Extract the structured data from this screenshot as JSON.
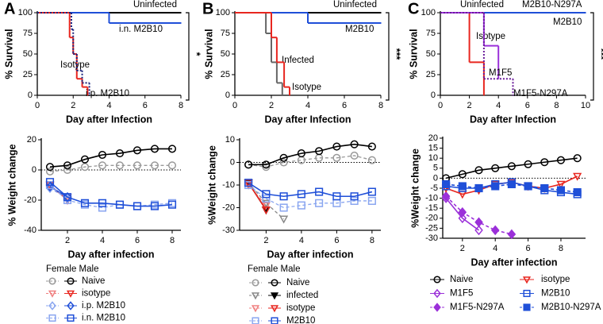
{
  "chart_data": [
    {
      "type": "survival",
      "panel": "A",
      "ylabel": "% Survival",
      "xlabel": "Day after Infection",
      "significance": "*",
      "xlim": [
        0,
        8
      ],
      "xticks": [
        0,
        2,
        4,
        6,
        8
      ],
      "ylim": [
        0,
        100
      ],
      "yticks": [
        0,
        25,
        50,
        75,
        100
      ],
      "series": [
        {
          "name": "Uninfected",
          "color": "#000000",
          "x": [
            0,
            8
          ],
          "values": [
            100,
            100
          ]
        },
        {
          "name": "i.n. M2B10",
          "color": "#1f4fd8",
          "x": [
            0,
            4,
            8
          ],
          "values": [
            100,
            87.5,
            87.5
          ]
        },
        {
          "name": "Isotype",
          "color": "#e8261f",
          "x": [
            0,
            1.8,
            2,
            2.2,
            2.5,
            2.8
          ],
          "values": [
            100,
            70,
            50,
            20,
            10,
            0
          ]
        },
        {
          "name": "i.p. M2B10",
          "color": "#1a237e",
          "dash": "dotted",
          "x": [
            0,
            1.9,
            2,
            2.2,
            2.5,
            2.9
          ],
          "values": [
            100,
            80,
            50,
            30,
            15,
            0
          ]
        }
      ]
    },
    {
      "type": "survival",
      "panel": "B",
      "ylabel": "% Survival",
      "xlabel": "Day after Infection",
      "significance": "***",
      "xlim": [
        0,
        8
      ],
      "xticks": [
        0,
        2,
        4,
        6,
        8
      ],
      "ylim": [
        0,
        100
      ],
      "yticks": [
        0,
        25,
        50,
        75,
        100
      ],
      "series": [
        {
          "name": "Uninfected",
          "color": "#000000",
          "x": [
            0,
            8
          ],
          "values": [
            100,
            100
          ]
        },
        {
          "name": "M2B10",
          "color": "#1f4fd8",
          "x": [
            0,
            4,
            8
          ],
          "values": [
            100,
            87.5,
            87.5
          ]
        },
        {
          "name": "Infected",
          "color": "#666666",
          "x": [
            0,
            1.7,
            2,
            2.3,
            2.6
          ],
          "values": [
            100,
            75,
            40,
            15,
            0
          ]
        },
        {
          "name": "Isotype",
          "color": "#e8261f",
          "x": [
            0,
            2,
            2.3,
            2.7,
            3
          ],
          "values": [
            100,
            70,
            40,
            10,
            0
          ]
        }
      ]
    },
    {
      "type": "survival",
      "panel": "C",
      "ylabel": "% Survival",
      "xlabel": "Day after Infection",
      "significance": "***",
      "xlim": [
        0,
        10
      ],
      "xticks": [
        0,
        2,
        4,
        6,
        8,
        10
      ],
      "ylim": [
        0,
        100
      ],
      "yticks": [
        0,
        25,
        50,
        75,
        100
      ],
      "series": [
        {
          "name": "Uninfected",
          "color": "#000000",
          "x": [
            0,
            10
          ],
          "values": [
            100,
            100
          ]
        },
        {
          "name": "M2B10-N297A",
          "color": "#1a237e",
          "dash": "dotted",
          "x": [
            0,
            10
          ],
          "values": [
            100,
            100
          ]
        },
        {
          "name": "M2B10",
          "color": "#1f4fd8",
          "x": [
            0,
            10
          ],
          "values": [
            100,
            100
          ]
        },
        {
          "name": "Isotype",
          "color": "#e8261f",
          "x": [
            0,
            2,
            3
          ],
          "values": [
            100,
            40,
            0
          ]
        },
        {
          "name": "M1F5",
          "color": "#9b30d9",
          "x": [
            0,
            3,
            4
          ],
          "values": [
            100,
            60,
            20
          ]
        },
        {
          "name": "M1F5-N297A",
          "color": "#6a1b9a",
          "dash": "dotted",
          "x": [
            0,
            3,
            5
          ],
          "values": [
            100,
            20,
            0
          ]
        }
      ]
    },
    {
      "type": "weight",
      "ylabel": "% Weight change",
      "xlabel": "Day after infection",
      "legend_header": "Female Male",
      "xlim": [
        0.5,
        8.5
      ],
      "xticks": [
        2,
        4,
        6,
        8
      ],
      "ylim": [
        -40,
        20
      ],
      "yticks": [
        -40,
        -20,
        0,
        20
      ],
      "x": [
        1,
        2,
        3,
        4,
        5,
        6,
        7,
        8
      ],
      "series": [
        {
          "name": "Naive",
          "marker": "circle",
          "female": {
            "color": "#999999",
            "values": [
              -1,
              0,
              2,
              3,
              3,
              3,
              3,
              3
            ]
          },
          "male": {
            "color": "#000000",
            "values": [
              2,
              3,
              7,
              10,
              11,
              13,
              14,
              14
            ]
          }
        },
        {
          "name": "isotype",
          "marker": "triangle-down",
          "female": {
            "color": "#f08080",
            "values": [
              -12,
              -18,
              null,
              null,
              null,
              null,
              null,
              null
            ]
          },
          "male": {
            "color": "#e8261f",
            "values": [
              -10,
              -20,
              null,
              null,
              null,
              null,
              null,
              null
            ]
          }
        },
        {
          "name": "i.p. M2B10",
          "marker": "diamond",
          "female": {
            "color": "#8aa6f0",
            "values": [
              -12,
              -19,
              null,
              null,
              null,
              null,
              null,
              null
            ]
          },
          "male": {
            "color": "#1f4fd8",
            "values": [
              -11,
              -18,
              null,
              null,
              null,
              null,
              null,
              null
            ]
          }
        },
        {
          "name": "i.n. M2B10",
          "marker": "square",
          "female": {
            "color": "#8aa6f0",
            "values": [
              -10,
              -20,
              -23,
              -25,
              -23,
              -24,
              -23,
              -22
            ]
          },
          "male": {
            "color": "#1f4fd8",
            "values": [
              -8,
              -18,
              -22,
              -22,
              -23,
              -24,
              -24,
              -23
            ]
          }
        }
      ]
    },
    {
      "type": "weight",
      "ylabel": "%Weight change",
      "xlabel": "Day after infection",
      "legend_header": "Female Male",
      "xlim": [
        0.5,
        8.5
      ],
      "xticks": [
        2,
        4,
        6,
        8
      ],
      "ylim": [
        -30,
        10
      ],
      "yticks": [
        -30,
        -20,
        -10,
        0,
        10
      ],
      "x": [
        1,
        2,
        3,
        4,
        5,
        6,
        7,
        8
      ],
      "series": [
        {
          "name": "Naive",
          "marker": "circle",
          "female": {
            "color": "#999999",
            "values": [
              -1,
              -2,
              0,
              1,
              2,
              2,
              3,
              1
            ]
          },
          "male": {
            "color": "#000000",
            "values": [
              -1,
              -1,
              2,
              4,
              5,
              7,
              8,
              7
            ]
          }
        },
        {
          "name": "infected",
          "marker": "triangle-down",
          "filled": true,
          "female": {
            "color": "#888888",
            "values": [
              -9,
              -18,
              -25,
              null,
              null,
              null,
              null,
              null
            ]
          },
          "male": {
            "color": "#000000",
            "values": [
              -9,
              -21,
              null,
              null,
              null,
              null,
              null,
              null
            ]
          }
        },
        {
          "name": "isotype",
          "marker": "triangle-down",
          "female": {
            "color": "#f08080",
            "values": [
              -10,
              -19,
              null,
              null,
              null,
              null,
              null,
              null
            ]
          },
          "male": {
            "color": "#e8261f",
            "values": [
              -9,
              -21,
              null,
              null,
              null,
              null,
              null,
              null
            ]
          }
        },
        {
          "name": "M2B10",
          "marker": "square",
          "female": {
            "color": "#8aa6f0",
            "values": [
              -10,
              -16,
              -20,
              -19,
              -18,
              -18,
              -17,
              -17
            ]
          },
          "male": {
            "color": "#1f4fd8",
            "values": [
              -9,
              -14,
              -15,
              -14,
              -13,
              -15,
              -15,
              -13
            ]
          }
        }
      ]
    },
    {
      "type": "weight",
      "ylabel": "%Weight change",
      "xlabel": "Day after infection",
      "xlim": [
        0.8,
        9.5
      ],
      "xticks": [
        2,
        4,
        6,
        8
      ],
      "ylim": [
        -30,
        20
      ],
      "yticks": [
        -30,
        -25,
        -20,
        -15,
        -10,
        -5,
        0,
        5,
        10,
        15,
        20
      ],
      "x": [
        1,
        2,
        3,
        4,
        5,
        6,
        7,
        8,
        9
      ],
      "series": [
        {
          "name": "Naive",
          "marker": "circle",
          "color": "#000000",
          "values": [
            0,
            2,
            4,
            5,
            6,
            7,
            8,
            9,
            10
          ]
        },
        {
          "name": "M1F5",
          "marker": "diamond",
          "color": "#9b30d9",
          "values": [
            -10,
            -20,
            -26,
            null,
            null,
            null,
            null,
            null,
            null
          ]
        },
        {
          "name": "M1F5-N297A",
          "marker": "diamond",
          "filled": true,
          "dashed": true,
          "color": "#9b30d9",
          "values": [
            -9,
            -17,
            -22,
            -26,
            -28,
            null,
            null,
            null,
            null
          ]
        },
        {
          "name": "isotype",
          "marker": "triangle-down",
          "color": "#e8261f",
          "values": [
            -5,
            -8,
            -6,
            -3,
            -2,
            -4,
            -5,
            -3,
            1
          ]
        },
        {
          "name": "M2B10",
          "marker": "square",
          "color": "#1f4fd8",
          "values": [
            -4,
            -5,
            -5,
            -3,
            -2,
            -4,
            -6,
            -7,
            -8
          ]
        },
        {
          "name": "M2B10-N297A",
          "marker": "square",
          "filled": true,
          "dashed": true,
          "color": "#1f4fd8",
          "values": [
            -3,
            -4,
            -5,
            -4,
            -3,
            -4,
            -5,
            -6,
            -7
          ]
        }
      ]
    }
  ]
}
